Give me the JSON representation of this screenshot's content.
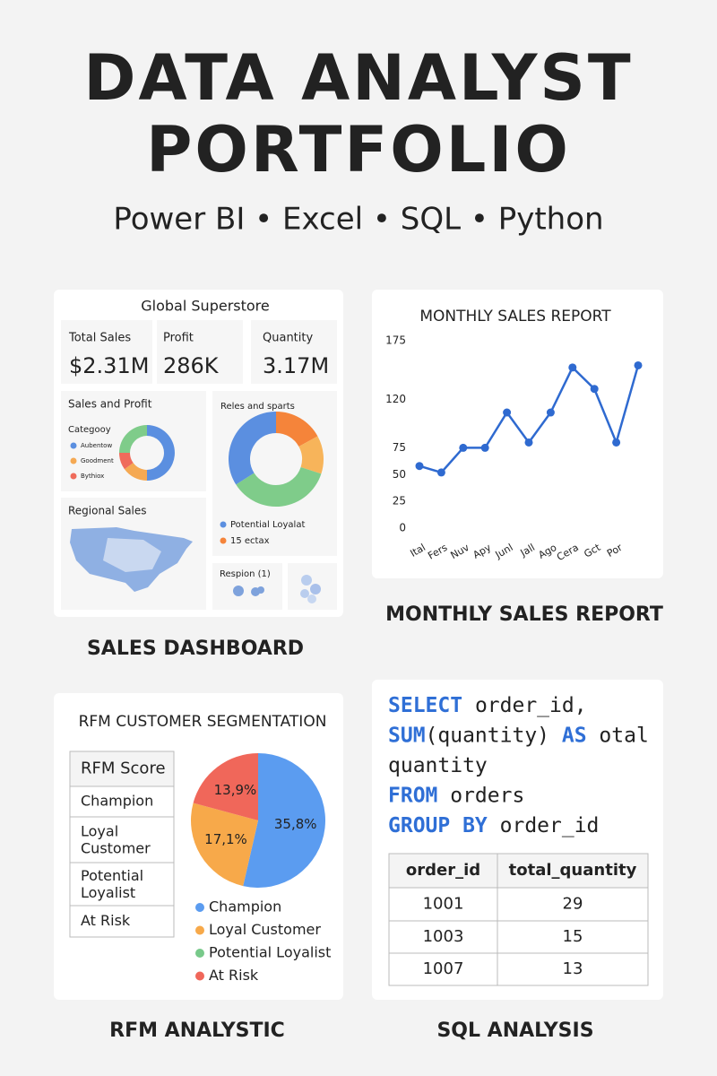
{
  "header": {
    "title_lines": [
      "DATA ANALYST",
      "PORTFOLIO"
    ],
    "subtitle": "Power BI • Excel • SQL • Python"
  },
  "dashboard": {
    "caption": "SALES DASHBOARD",
    "title": "Global Superstore",
    "kpis": [
      {
        "label": "Total Sales",
        "value": "$2.31M"
      },
      {
        "label": "Profit",
        "value": "286K"
      },
      {
        "label": "Quantity",
        "value": "3.17M"
      }
    ],
    "sales_profit": {
      "title": "Sales and Profit",
      "legend_title": "Categooy",
      "chart_data": {
        "type": "donut",
        "series": [
          {
            "name": "Aubentow",
            "color": "#5b8fe0",
            "values": [
              50
            ]
          },
          {
            "name": "Goodment",
            "color": "#f5a953",
            "values": [
              15
            ]
          },
          {
            "name": "Bythiox",
            "color": "#ef6b5b",
            "values": [
              10
            ]
          },
          {
            "name": null,
            "color": "#7fcc8a",
            "values": [
              25
            ]
          }
        ]
      }
    },
    "region_share": {
      "title": "Reles and sparts",
      "legend": [
        "Potential Loyalat",
        "15 ectax"
      ],
      "chart_data": {
        "type": "donut",
        "series": [
          {
            "name": null,
            "color": "#f5843a",
            "values": [
              17
            ]
          },
          {
            "name": null,
            "color": "#f7b45a",
            "values": [
              13
            ]
          },
          {
            "name": null,
            "color": "#7fcc8a",
            "values": [
              36
            ]
          },
          {
            "name": null,
            "color": "#5b8fe0",
            "values": [
              34
            ]
          }
        ]
      }
    },
    "regional_sales": {
      "title": "Regional Sales"
    },
    "respion": {
      "title": "Respion (1)"
    }
  },
  "monthly": {
    "caption": "MONTHLY SALES REPORT",
    "chart_data": {
      "type": "line",
      "title": "MONTHLY SALES REPORT",
      "categories": [
        "Ital",
        "Fers",
        "Nuv",
        "Apy",
        "Junl",
        "Jall",
        "Ago",
        "Cera",
        "Gct",
        "Por",
        null
      ],
      "series": [
        {
          "name": null,
          "color": "#2f6ad0",
          "values": [
            58,
            52,
            75,
            75,
            108,
            80,
            108,
            150,
            130,
            80,
            152
          ]
        }
      ],
      "ylim": [
        0,
        175
      ],
      "yticks": [
        0,
        25,
        50,
        75,
        120,
        175
      ],
      "grid": false
    }
  },
  "rfm": {
    "caption": "RFM ANALYSTIC",
    "title": "RFM CUSTOMER SEGMENTATION",
    "table": {
      "header": "RFM Score",
      "rows": [
        "Champion",
        "Loyal Customer",
        "Potential Loyalist",
        "At Risk"
      ]
    },
    "chart_data": {
      "type": "pie",
      "categories": [
        "Champion",
        "Loyal Customer",
        "Potential Loyalist",
        "At Risk"
      ],
      "colors": [
        "#5b9cf0",
        "#f7a94a",
        "#78c98a",
        "#f0675a"
      ],
      "values": [
        35.8,
        17.1,
        0,
        13.9
      ],
      "value_labels": [
        "35,8%",
        "17,1%",
        null,
        "13,9%"
      ]
    }
  },
  "sql": {
    "caption": "SQL ANALYSIS",
    "code": [
      [
        {
          "t": "SELECT",
          "kw": true
        },
        {
          "t": " order_id,",
          "kw": false
        }
      ],
      [
        {
          "t": "SUM",
          "kw": true
        },
        {
          "t": "(quantity) ",
          "kw": false
        },
        {
          "t": "AS",
          "kw": true
        },
        {
          "t": " otal",
          "kw": false
        }
      ],
      [
        {
          "t": "quantity",
          "kw": false
        }
      ],
      [
        {
          "t": "FROM",
          "kw": true
        },
        {
          "t": " orders",
          "kw": false
        }
      ],
      [
        {
          "t": "GROUP BY",
          "kw": true
        },
        {
          "t": " order_id",
          "kw": false
        }
      ]
    ],
    "table": {
      "columns": [
        "order_id",
        "total_quantity"
      ],
      "rows": [
        [
          "1001",
          "29"
        ],
        [
          "1003",
          "15"
        ],
        [
          "1007",
          "13"
        ]
      ]
    }
  }
}
